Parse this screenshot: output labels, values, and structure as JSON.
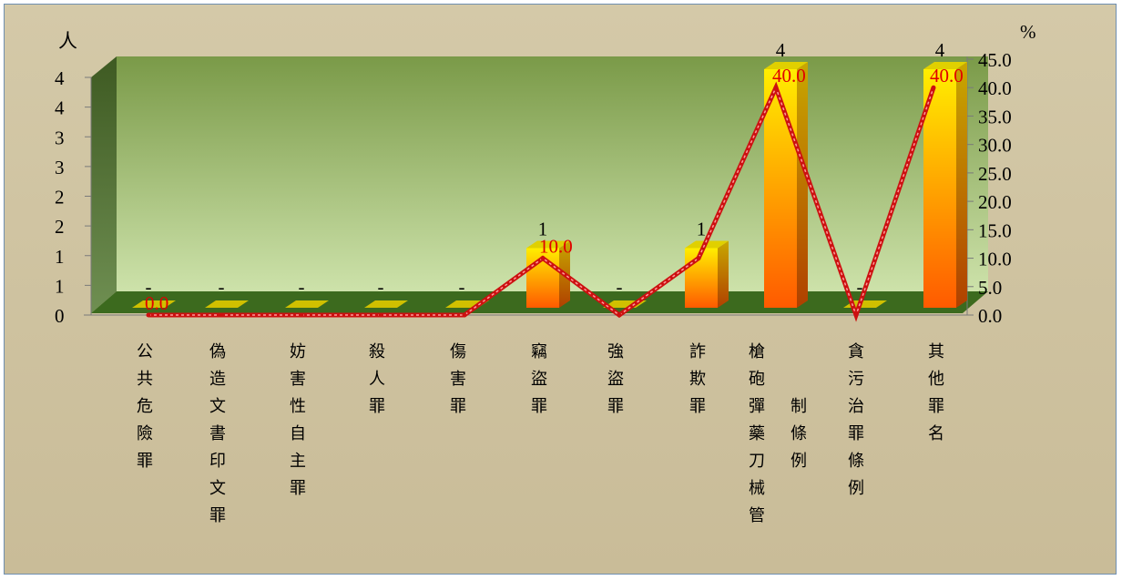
{
  "chart_data": {
    "type": "bar",
    "title": "",
    "left_axis_unit": "人",
    "right_axis_unit": "%",
    "left_ticks": [
      "0",
      "1",
      "1",
      "2",
      "2",
      "3",
      "3",
      "4",
      "4"
    ],
    "right_ticks": [
      "0.0",
      "5.0",
      "10.0",
      "15.0",
      "20.0",
      "25.0",
      "30.0",
      "35.0",
      "40.0",
      "45.0"
    ],
    "ylim_left": [
      0,
      4
    ],
    "ylim_right": [
      0,
      45
    ],
    "categories": [
      [
        "公共危險罪"
      ],
      [
        "偽造文書印文罪"
      ],
      [
        "妨害性自主罪"
      ],
      [
        "殺人罪"
      ],
      [
        "傷害罪"
      ],
      [
        "竊盜罪"
      ],
      [
        "強盜罪"
      ],
      [
        "詐欺罪"
      ],
      [
        "槍砲彈藥刀械管",
        "制條例"
      ],
      [
        "貪污治罪條例"
      ],
      [
        "其他罪名"
      ]
    ],
    "series": [
      {
        "name": "人",
        "type": "bar",
        "values": [
          0,
          0,
          0,
          0,
          0,
          1,
          0,
          1,
          4,
          0,
          4
        ],
        "labels": [
          "-",
          "-",
          "-",
          "-",
          "-",
          "1",
          "-",
          "1",
          "4",
          "-",
          "4"
        ]
      },
      {
        "name": "%",
        "type": "line",
        "values": [
          0,
          0,
          0,
          0,
          0,
          10,
          0,
          10,
          40,
          0,
          40
        ],
        "labels": [
          "0.0",
          "",
          "",
          "",
          "",
          "10.0",
          "",
          "",
          "40.0",
          "",
          "40.0"
        ]
      }
    ]
  },
  "colors": {
    "bar_top": "#ffee00",
    "bar_bottom": "#ff5a00",
    "line": "#cc1010",
    "line_highlight": "#ff9a9a",
    "wall_top": "#7a9a48",
    "wall_bottom": "#c6dca0",
    "floor": "#3c6a1e"
  }
}
